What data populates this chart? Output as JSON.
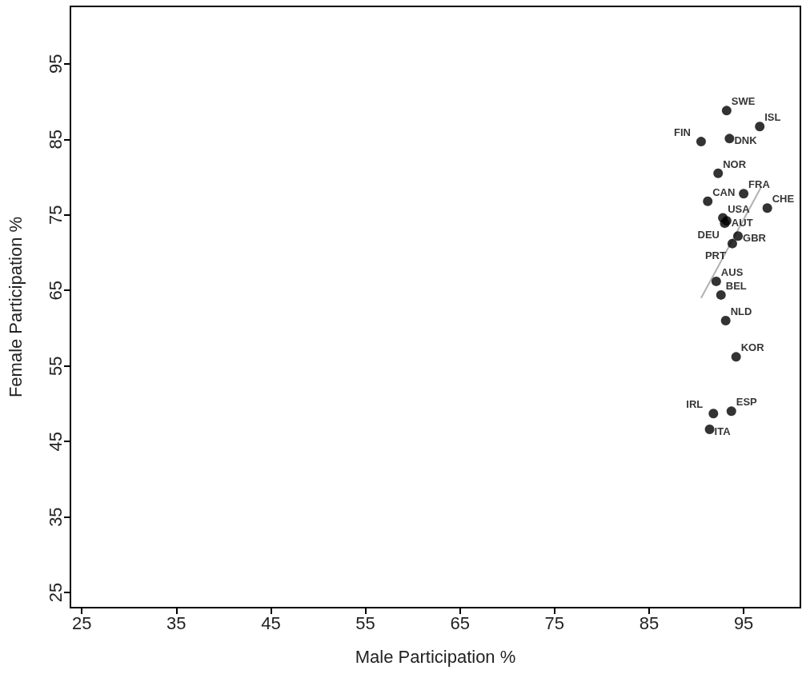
{
  "chart_data": {
    "type": "scatter",
    "xlabel": "Male Participation %",
    "ylabel": "Female Participation %",
    "xlim": [
      23.8,
      101
    ],
    "ylim": [
      23,
      102.6
    ],
    "xticks": [
      25,
      35,
      45,
      55,
      65,
      75,
      85,
      95
    ],
    "yticks": [
      25,
      35,
      45,
      55,
      65,
      75,
      85,
      95
    ],
    "grid": false,
    "marker": "circle",
    "series": [
      {
        "color": "#000000",
        "x": [
          93.2,
          96.7,
          93.5,
          90.5,
          92.3,
          95.0,
          91.2,
          97.5,
          92.8,
          93.2,
          93.0,
          94.4,
          93.8,
          92.1,
          92.6,
          93.1,
          94.2,
          91.8,
          93.7,
          91.4
        ],
        "values": [
          88.8,
          86.7,
          85.1,
          84.7,
          80.5,
          77.8,
          76.8,
          75.9,
          74.6,
          74.2,
          73.9,
          72.2,
          71.2,
          66.2,
          64.4,
          61.0,
          56.2,
          48.7,
          49.0,
          46.6
        ]
      },
      {
        "type": "line",
        "color": "#b0b0b0",
        "marker": "none",
        "x": [
          90.5,
          96.9
        ],
        "values": [
          64.0,
          78.8
        ]
      }
    ],
    "annotations": [
      {
        "text": "SWE",
        "x": 93.2,
        "y": 88.8
      },
      {
        "text": "ISL",
        "x": 96.7,
        "y": 86.7
      },
      {
        "text": "DNK",
        "x": 93.5,
        "y": 85.1
      },
      {
        "text": "FIN",
        "x": 90.5,
        "y": 84.7
      },
      {
        "text": "NOR",
        "x": 92.3,
        "y": 80.5
      },
      {
        "text": "FRA",
        "x": 95.0,
        "y": 77.8
      },
      {
        "text": "CAN",
        "x": 91.2,
        "y": 76.8
      },
      {
        "text": "CHE",
        "x": 97.5,
        "y": 75.9
      },
      {
        "text": "USA",
        "x": 92.8,
        "y": 74.6
      },
      {
        "text": "AUT",
        "x": 93.2,
        "y": 74.2
      },
      {
        "text": "DEU",
        "x": 93.0,
        "y": 73.9
      },
      {
        "text": "GBR",
        "x": 94.4,
        "y": 72.2
      },
      {
        "text": "PRT",
        "x": 93.8,
        "y": 71.2
      },
      {
        "text": "AUS",
        "x": 92.1,
        "y": 66.2
      },
      {
        "text": "BEL",
        "x": 92.6,
        "y": 64.4
      },
      {
        "text": "NLD",
        "x": 93.1,
        "y": 61.0
      },
      {
        "text": "KOR",
        "x": 94.2,
        "y": 56.2
      },
      {
        "text": "IRL",
        "x": 91.8,
        "y": 48.7
      },
      {
        "text": "ESP",
        "x": 93.7,
        "y": 49.0
      },
      {
        "text": "ITA",
        "x": 91.4,
        "y": 46.6
      }
    ]
  }
}
